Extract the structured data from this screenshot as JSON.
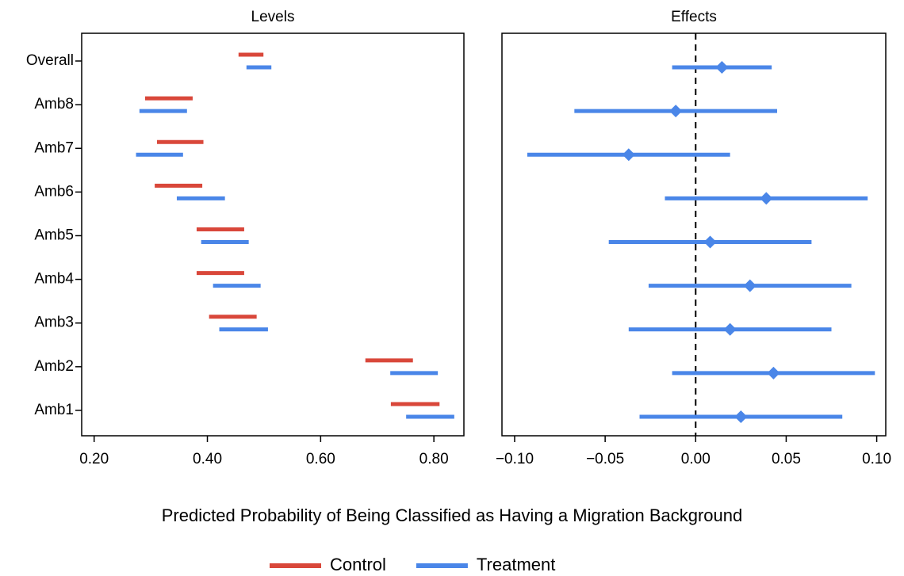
{
  "chart_data": [
    {
      "type": "range",
      "title": "Levels",
      "categories": [
        "Overall",
        "Amb8",
        "Amb7",
        "Amb6",
        "Amb5",
        "Amb4",
        "Amb3",
        "Amb2",
        "Amb1"
      ],
      "series": [
        {
          "name": "Control",
          "color": "#d9473a",
          "low": [
            0.455,
            0.29,
            0.311,
            0.307,
            0.381,
            0.381,
            0.403,
            0.679,
            0.724
          ],
          "high": [
            0.499,
            0.374,
            0.393,
            0.391,
            0.465,
            0.465,
            0.487,
            0.763,
            0.81
          ]
        },
        {
          "name": "Treatment",
          "color": "#4a86e8",
          "low": [
            0.469,
            0.28,
            0.274,
            0.346,
            0.389,
            0.41,
            0.421,
            0.723,
            0.751
          ],
          "high": [
            0.513,
            0.364,
            0.357,
            0.431,
            0.473,
            0.494,
            0.507,
            0.807,
            0.836
          ]
        }
      ],
      "xlim": [
        0.178,
        0.853
      ],
      "xticks": [
        {
          "value": 0.2,
          "label": "0.20"
        },
        {
          "value": 0.4,
          "label": "0.40"
        },
        {
          "value": 0.6,
          "label": "0.60"
        },
        {
          "value": 0.8,
          "label": "0.80"
        }
      ]
    },
    {
      "type": "errorbar",
      "title": "Effects",
      "series": [
        {
          "name": "Treatment",
          "color": "#4a86e8",
          "values": [
            0.0145,
            -0.011,
            -0.037,
            0.039,
            0.008,
            0.03,
            0.019,
            0.043,
            0.025
          ],
          "low": [
            -0.013,
            -0.067,
            -0.093,
            -0.017,
            -0.048,
            -0.026,
            -0.037,
            -0.013,
            -0.031
          ],
          "high": [
            0.042,
            0.045,
            0.019,
            0.095,
            0.064,
            0.086,
            0.075,
            0.099,
            0.081
          ]
        }
      ],
      "xlim": [
        -0.107,
        0.105
      ],
      "xticks": [
        {
          "value": -0.1,
          "label": "−0.10"
        },
        {
          "value": -0.05,
          "label": "−0.05"
        },
        {
          "value": 0,
          "label": "0.00"
        },
        {
          "value": 0.05,
          "label": "0.05"
        },
        {
          "value": 0.1,
          "label": "0.10"
        }
      ],
      "vline": 0
    }
  ],
  "xlabel": "Predicted Probability of Being Classified as Having a Migration Background"
}
